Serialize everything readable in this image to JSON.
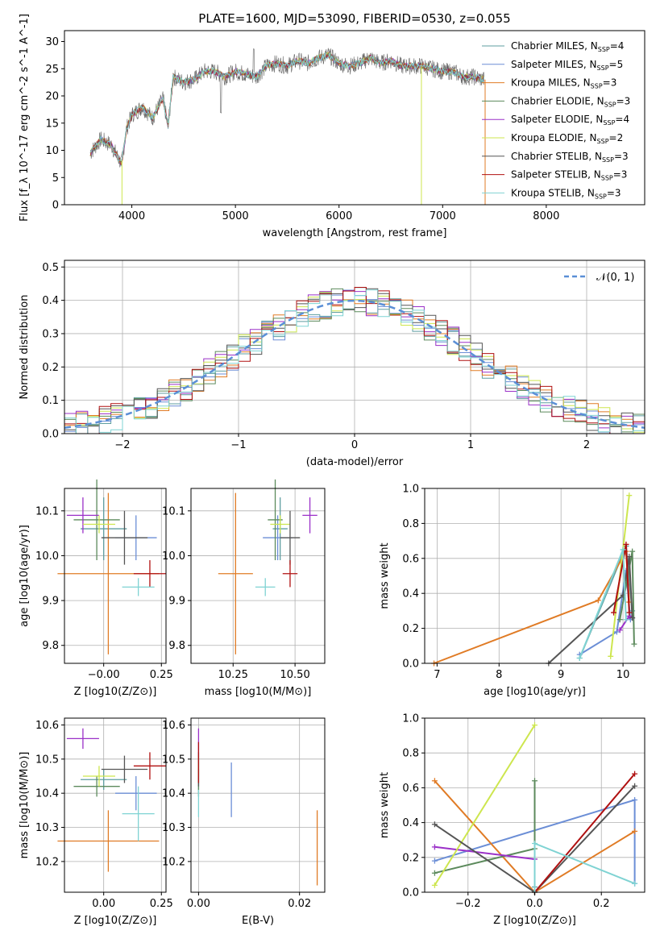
{
  "figure": {
    "title": "PLATE=1600, MJD=53090, FIBERID=0530, z=0.055"
  },
  "models": [
    {
      "name": "Chabrier MILES, N_SSP=4",
      "color": "#5f9ea0"
    },
    {
      "name": "Salpeter MILES, N_SSP=5",
      "color": "#6b8ed6"
    },
    {
      "name": "Kroupa MILES, N_SSP=3",
      "color": "#e07b25"
    },
    {
      "name": "Chabrier ELODIE, N_SSP=3",
      "color": "#5c8a5c"
    },
    {
      "name": "Salpeter ELODIE, N_SSP=4",
      "color": "#9b30c8"
    },
    {
      "name": "Kroupa ELODIE, N_SSP=2",
      "color": "#cde64e"
    },
    {
      "name": "Chabrier STELIB, N_SSP=3",
      "color": "#555555"
    },
    {
      "name": "Salpeter STELIB, N_SSP=3",
      "color": "#b01010"
    },
    {
      "name": "Kroupa STELIB, N_SSP=3",
      "color": "#7fd3d3"
    }
  ],
  "chart_data": [
    {
      "type": "line",
      "panel": "spectrum",
      "title": "PLATE=1600, MJD=53090, FIBERID=0530, z=0.055",
      "xlabel": "wavelength [Angstrom, rest frame]",
      "ylabel": "Flux [f_λ 10^-17 erg cm^-2 s^-1 A^-1]",
      "xlim": [
        3350,
        8950
      ],
      "ylim": [
        0,
        32
      ],
      "xticks": [
        "4000",
        "5000",
        "6000",
        "7000",
        "8000"
      ],
      "yticks": [
        "0",
        "5",
        "10",
        "15",
        "20",
        "25",
        "30"
      ],
      "grid": false,
      "legend": "upper right",
      "spectrum_x": [
        3600,
        3700,
        3800,
        3900,
        3950,
        4000,
        4100,
        4200,
        4300,
        4350,
        4400,
        4500,
        4600,
        4700,
        4800,
        4900,
        5000,
        5100,
        5200,
        5300,
        5400,
        5500,
        5600,
        5700,
        5800,
        5900,
        6000,
        6100,
        6200,
        6300,
        6400,
        6500,
        6600,
        6700,
        6800,
        6900,
        7000,
        7100,
        7200,
        7300,
        7400
      ],
      "spectrum_y": [
        9.5,
        12,
        11,
        7.5,
        14,
        16.5,
        18,
        16,
        19.5,
        14.5,
        23.5,
        22.5,
        23,
        24.5,
        24.5,
        23.5,
        24.5,
        24,
        23.5,
        25.5,
        26,
        25.5,
        26.5,
        26,
        27,
        27.5,
        26,
        25.5,
        26,
        27,
        26,
        26.5,
        25.5,
        25.5,
        25.5,
        25,
        24.5,
        24.5,
        23.5,
        23.5,
        23
      ]
    },
    {
      "type": "line",
      "panel": "residuals",
      "xlabel": "(data-model)/error",
      "ylabel": "Normed distribution",
      "xlim": [
        -2.5,
        2.5
      ],
      "ylim": [
        0,
        0.52
      ],
      "xticks": [
        "−2",
        "−1",
        "0",
        "1",
        "2"
      ],
      "yticks": [
        "0.0",
        "0.1",
        "0.2",
        "0.3",
        "0.4",
        "0.5"
      ],
      "grid": true,
      "legend": "upper right",
      "reference_label": "𝒩(0, 1)",
      "reference_color": "#5b8fd6"
    },
    {
      "type": "scatter",
      "panel": "age-vs-Z",
      "xlabel": "Z [log10(Z/Z⊙)]",
      "ylabel": "age [log10(age/yr)]",
      "xlim": [
        -0.17,
        0.27
      ],
      "ylim": [
        9.76,
        10.15
      ],
      "xticks": [
        "−0.00",
        "0.25"
      ],
      "yticks": [
        "9.8",
        "9.9",
        "10.0",
        "10.1"
      ],
      "grid": true,
      "points": [
        {
          "model": 0,
          "x": 0.0,
          "y": 10.06,
          "xerr": 0.1,
          "yerr": 0.07
        },
        {
          "model": 1,
          "x": 0.14,
          "y": 10.04,
          "xerr": 0.09,
          "yerr": 0.05
        },
        {
          "model": 2,
          "x": 0.02,
          "y": 9.96,
          "xerr": 0.22,
          "yerr": 0.18
        },
        {
          "model": 3,
          "x": -0.03,
          "y": 10.08,
          "xerr": 0.1,
          "yerr": 0.09
        },
        {
          "model": 4,
          "x": -0.09,
          "y": 10.09,
          "xerr": 0.07,
          "yerr": 0.04
        },
        {
          "model": 5,
          "x": -0.02,
          "y": 10.07,
          "xerr": 0.07,
          "yerr": 0.02
        },
        {
          "model": 6,
          "x": 0.09,
          "y": 10.04,
          "xerr": 0.1,
          "yerr": 0.06
        },
        {
          "model": 7,
          "x": 0.2,
          "y": 9.96,
          "xerr": 0.07,
          "yerr": 0.03
        },
        {
          "model": 8,
          "x": 0.15,
          "y": 9.93,
          "xerr": 0.07,
          "yerr": 0.02
        }
      ]
    },
    {
      "type": "scatter",
      "panel": "age-vs-mass",
      "xlabel": "mass [log10(M/M⊙)]",
      "ylabel": "",
      "xlim": [
        10.08,
        10.62
      ],
      "ylim": [
        9.76,
        10.15
      ],
      "xticks": [
        "10.25",
        "10.50"
      ],
      "yticks": [
        "9.8",
        "9.9",
        "10.0",
        "10.1"
      ],
      "grid": true,
      "points": [
        {
          "model": 0,
          "x": 10.44,
          "y": 10.06,
          "xerr": 0.03,
          "yerr": 0.07
        },
        {
          "model": 1,
          "x": 10.43,
          "y": 10.04,
          "xerr": 0.06,
          "yerr": 0.05
        },
        {
          "model": 2,
          "x": 10.26,
          "y": 9.96,
          "xerr": 0.07,
          "yerr": 0.18
        },
        {
          "model": 3,
          "x": 10.42,
          "y": 10.08,
          "xerr": 0.03,
          "yerr": 0.09
        },
        {
          "model": 4,
          "x": 10.56,
          "y": 10.09,
          "xerr": 0.03,
          "yerr": 0.04
        },
        {
          "model": 5,
          "x": 10.44,
          "y": 10.07,
          "xerr": 0.04,
          "yerr": 0.02
        },
        {
          "model": 6,
          "x": 10.48,
          "y": 10.04,
          "xerr": 0.04,
          "yerr": 0.06
        },
        {
          "model": 7,
          "x": 10.48,
          "y": 9.96,
          "xerr": 0.03,
          "yerr": 0.03
        },
        {
          "model": 8,
          "x": 10.38,
          "y": 9.93,
          "xerr": 0.04,
          "yerr": 0.02
        }
      ]
    },
    {
      "type": "line",
      "panel": "mass-weight-vs-age",
      "xlabel": "age [log10(age/yr)]",
      "ylabel": "mass weight",
      "xlim": [
        6.8,
        10.35
      ],
      "ylim": [
        0,
        1.0
      ],
      "xticks": [
        "7",
        "8",
        "9",
        "10"
      ],
      "yticks": [
        "0.0",
        "0.2",
        "0.4",
        "0.6",
        "0.8",
        "1.0"
      ],
      "grid": true,
      "series": [
        {
          "model": 0,
          "x": [
            9.3,
            10.05,
            10.15
          ],
          "y": [
            0.03,
            0.67,
            0.3
          ]
        },
        {
          "model": 1,
          "x": [
            9.3,
            9.9,
            10.05,
            10.12
          ],
          "y": [
            0.05,
            0.18,
            0.53,
            0.25
          ]
        },
        {
          "model": 2,
          "x": [
            6.95,
            9.6,
            10.05,
            10.1
          ],
          "y": [
            0.0,
            0.36,
            0.64,
            0.35
          ]
        },
        {
          "model": 3,
          "x": [
            9.95,
            10.15,
            10.18
          ],
          "y": [
            0.25,
            0.64,
            0.11
          ]
        },
        {
          "model": 4,
          "x": [
            9.95,
            10.1,
            10.15
          ],
          "y": [
            0.19,
            0.27,
            0.26
          ]
        },
        {
          "model": 5,
          "x": [
            9.8,
            10.1
          ],
          "y": [
            0.04,
            0.96
          ]
        },
        {
          "model": 6,
          "x": [
            8.8,
            10.0,
            10.1,
            10.15
          ],
          "y": [
            0.0,
            0.39,
            0.61,
            0.26
          ]
        },
        {
          "model": 7,
          "x": [
            9.85,
            10.05,
            10.1
          ],
          "y": [
            0.29,
            0.68,
            0.29
          ]
        },
        {
          "model": 8,
          "x": [
            9.3,
            10.0,
            10.05
          ],
          "y": [
            0.03,
            0.65,
            0.25
          ]
        }
      ]
    },
    {
      "type": "scatter",
      "panel": "mass-vs-Z",
      "xlabel": "Z [log10(Z/Z⊙)]",
      "ylabel": "mass [log10(M/M⊙)]",
      "xlim": [
        -0.17,
        0.27
      ],
      "ylim": [
        10.11,
        10.62
      ],
      "xticks": [
        "0.00",
        "0.25"
      ],
      "yticks": [
        "10.2",
        "10.3",
        "10.4",
        "10.5",
        "10.6"
      ],
      "grid": true,
      "points": [
        {
          "model": 0,
          "x": 0.0,
          "y": 10.44,
          "xerr": 0.1,
          "yerr": 0.03
        },
        {
          "model": 1,
          "x": 0.14,
          "y": 10.4,
          "xerr": 0.09,
          "yerr": 0.05
        },
        {
          "model": 2,
          "x": 0.02,
          "y": 10.26,
          "xerr": 0.22,
          "yerr": 0.09
        },
        {
          "model": 3,
          "x": -0.03,
          "y": 10.42,
          "xerr": 0.1,
          "yerr": 0.03
        },
        {
          "model": 4,
          "x": -0.09,
          "y": 10.56,
          "xerr": 0.07,
          "yerr": 0.03
        },
        {
          "model": 5,
          "x": -0.02,
          "y": 10.45,
          "xerr": 0.07,
          "yerr": 0.03
        },
        {
          "model": 6,
          "x": 0.09,
          "y": 10.47,
          "xerr": 0.1,
          "yerr": 0.04
        },
        {
          "model": 7,
          "x": 0.2,
          "y": 10.48,
          "xerr": 0.07,
          "yerr": 0.04
        },
        {
          "model": 8,
          "x": 0.15,
          "y": 10.34,
          "xerr": 0.07,
          "yerr": 0.08
        }
      ]
    },
    {
      "type": "scatter",
      "panel": "mass-vs-ebv",
      "xlabel": "E(B-V)",
      "ylabel": "",
      "xlim": [
        -0.0015,
        0.025
      ],
      "ylim": [
        10.11,
        10.62
      ],
      "xticks": [
        "0.00",
        "0.02"
      ],
      "yticks": [
        "10.2",
        "10.3",
        "10.4",
        "10.5",
        "10.6"
      ],
      "grid": true,
      "points": [
        {
          "model": 0,
          "x": 0.0,
          "y": 10.44,
          "xerr": 0.0,
          "yerr": 0.03
        },
        {
          "model": 1,
          "x": 0.0065,
          "y": 10.41,
          "xerr": 0.0,
          "yerr": 0.08
        },
        {
          "model": 2,
          "x": 0.0235,
          "y": 10.24,
          "xerr": 0.0,
          "yerr": 0.11
        },
        {
          "model": 3,
          "x": 0.0,
          "y": 10.45,
          "xerr": 0.0,
          "yerr": 0.06
        },
        {
          "model": 4,
          "x": 0.0,
          "y": 10.55,
          "xerr": 0.0,
          "yerr": 0.04
        },
        {
          "model": 5,
          "x": 0.0,
          "y": 10.47,
          "xerr": 0.0,
          "yerr": 0.02
        },
        {
          "model": 6,
          "x": 0.0,
          "y": 10.47,
          "xerr": 0.0,
          "yerr": 0.05
        },
        {
          "model": 7,
          "x": 0.0,
          "y": 10.49,
          "xerr": 0.0,
          "yerr": 0.06
        },
        {
          "model": 8,
          "x": 0.0,
          "y": 10.37,
          "xerr": 0.0,
          "yerr": 0.04
        }
      ]
    },
    {
      "type": "line",
      "panel": "mass-weight-vs-Z",
      "xlabel": "Z [log10(Z/Z⊙)]",
      "ylabel": "mass weight",
      "xlim": [
        -0.33,
        0.33
      ],
      "ylim": [
        0,
        1.0
      ],
      "xticks": [
        "−0.2",
        "0.0",
        "0.2"
      ],
      "yticks": [
        "0.0",
        "0.2",
        "0.4",
        "0.6",
        "0.8",
        "1.0"
      ],
      "grid": true,
      "series": [
        {
          "model": 0,
          "x": [
            0.0,
            0.0
          ],
          "y": [
            0.0,
            0.03
          ]
        },
        {
          "model": 1,
          "x": [
            -0.3,
            0.3,
            0.3
          ],
          "y": [
            0.18,
            0.53,
            0.05
          ]
        },
        {
          "model": 2,
          "x": [
            -0.3,
            0.0,
            0.3
          ],
          "y": [
            0.64,
            0.0,
            0.35
          ]
        },
        {
          "model": 3,
          "x": [
            -0.3,
            0.0,
            0.0
          ],
          "y": [
            0.11,
            0.25,
            0.64
          ]
        },
        {
          "model": 4,
          "x": [
            -0.3,
            0.0
          ],
          "y": [
            0.26,
            0.19
          ]
        },
        {
          "model": 5,
          "x": [
            -0.3,
            0.0
          ],
          "y": [
            0.04,
            0.96
          ]
        },
        {
          "model": 6,
          "x": [
            -0.3,
            0.0,
            0.3
          ],
          "y": [
            0.39,
            0.0,
            0.61
          ]
        },
        {
          "model": 7,
          "x": [
            0.0,
            0.3
          ],
          "y": [
            0.0,
            0.68
          ]
        },
        {
          "model": 8,
          "x": [
            0.0,
            0.0,
            0.3
          ],
          "y": [
            0.0,
            0.28,
            0.05
          ]
        }
      ]
    }
  ]
}
